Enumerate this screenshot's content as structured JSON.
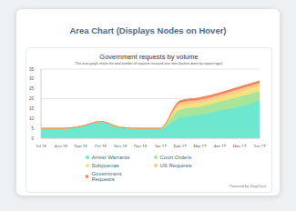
{
  "header": {
    "title": "Area Chart (Displays Nodes on Hover)"
  },
  "footer": "Powered by ZingChart",
  "chart_data": {
    "type": "area",
    "title": "Government requests by volume",
    "subtitle": "This area graph shows the total number of requests received over time (broken down by request type)",
    "categories": [
      "Jul 16",
      "Aug 16",
      "Sep 16",
      "Oct 16",
      "Nov 16",
      "Dec 16",
      "Jan 17",
      "Feb 17",
      "Mar 17",
      "Apr 17",
      "May 17",
      "Jun 17"
    ],
    "series": [
      {
        "name": "Arrest Warrants",
        "color": "#6ee7cf",
        "values": [
          5,
          5,
          6,
          8.5,
          5.5,
          5,
          5,
          10.5,
          12,
          14,
          16,
          19
        ]
      },
      {
        "name": "Court Orders",
        "color": "#a6e59a",
        "values": [
          0,
          0,
          0,
          0,
          0,
          0,
          0,
          4,
          4,
          4.5,
          5,
          5
        ]
      },
      {
        "name": "Subpoenas",
        "color": "#f3e27e",
        "values": [
          0,
          0,
          0,
          0,
          0,
          0,
          0,
          2,
          2,
          2,
          2.5,
          2.5
        ]
      },
      {
        "name": "US Requests",
        "color": "#f8c98a",
        "values": [
          0,
          0,
          0,
          0,
          0,
          0,
          0,
          1.5,
          1.5,
          1.5,
          1.5,
          1.5
        ]
      },
      {
        "name": "Government Requests",
        "color": "#f2845f",
        "values": [
          0,
          0,
          0,
          0,
          0,
          0,
          0,
          1,
          1,
          1,
          1,
          1
        ]
      }
    ],
    "ylim": [
      0,
      35
    ],
    "yticks": [
      0,
      5,
      10,
      15,
      20,
      25,
      30,
      35
    ],
    "stacked": true,
    "grid": true,
    "legend": "bottom"
  }
}
